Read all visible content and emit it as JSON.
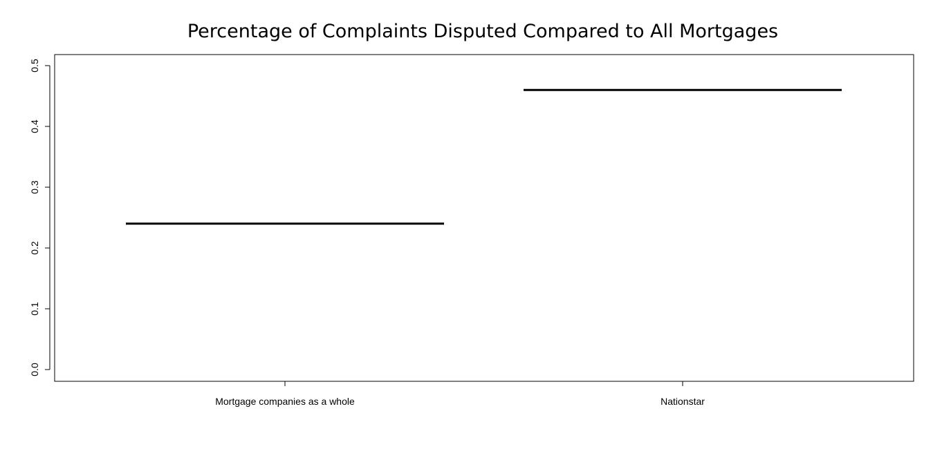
{
  "chart_data": {
    "type": "box",
    "title": "Percentage of Complaints Disputed Compared to All Mortgages",
    "xlabel": "",
    "ylabel": "",
    "categories": [
      "Mortgage companies as a whole",
      "Nationstar"
    ],
    "values": [
      0.24,
      0.46
    ],
    "ylim": [
      0.0,
      0.5
    ],
    "yticks": [
      0.0,
      0.1,
      0.2,
      0.3,
      0.4,
      0.5
    ],
    "ytick_labels": [
      "0.0",
      "0.1",
      "0.2",
      "0.3",
      "0.4",
      "0.5"
    ],
    "grid": false,
    "legend": "none"
  }
}
